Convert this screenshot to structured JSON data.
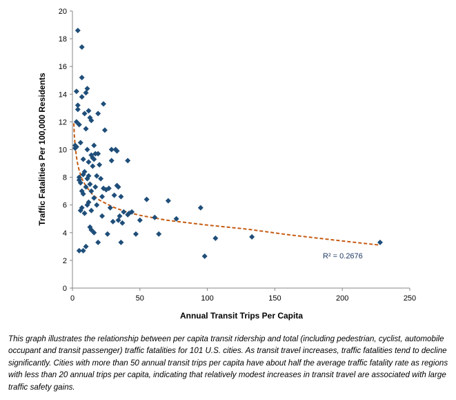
{
  "chart_data": {
    "type": "scatter",
    "xlabel": "Annual Transit Trips Per Capita",
    "ylabel": "Traffic Fatalities Per 100,000 Residents",
    "xlim": [
      0,
      250
    ],
    "ylim": [
      0,
      20
    ],
    "xticks": [
      0,
      50,
      100,
      150,
      200,
      250
    ],
    "yticks": [
      0,
      2,
      4,
      6,
      8,
      10,
      12,
      14,
      16,
      18,
      20
    ],
    "grid": false,
    "marker": "diamond",
    "point_color": "#1f4e79",
    "trendline": {
      "type": "power",
      "color": "#c55a11",
      "style": "dashed",
      "x": [
        1,
        1.5,
        2,
        3,
        4,
        5,
        7,
        10,
        15,
        20,
        30,
        40,
        50,
        70,
        100,
        130,
        160,
        200,
        228
      ],
      "y": [
        11.9,
        10.9,
        10.3,
        9.45,
        8.9,
        8.5,
        7.9,
        7.35,
        6.75,
        6.35,
        5.85,
        5.5,
        5.25,
        4.9,
        4.55,
        4.25,
        3.85,
        3.4,
        3.1
      ],
      "r2_label": "R² = 0.2676"
    },
    "points": [
      {
        "x": 2,
        "y": 10.1
      },
      {
        "x": 2,
        "y": 10.3
      },
      {
        "x": 3,
        "y": 12.0
      },
      {
        "x": 3,
        "y": 14.2
      },
      {
        "x": 3,
        "y": 10.2
      },
      {
        "x": 4,
        "y": 18.6
      },
      {
        "x": 4,
        "y": 13.2
      },
      {
        "x": 4,
        "y": 12.9
      },
      {
        "x": 5,
        "y": 11.8
      },
      {
        "x": 5,
        "y": 8.0
      },
      {
        "x": 5,
        "y": 7.8
      },
      {
        "x": 5,
        "y": 2.7
      },
      {
        "x": 6,
        "y": 10.5
      },
      {
        "x": 6,
        "y": 7.6
      },
      {
        "x": 6,
        "y": 5.6
      },
      {
        "x": 7,
        "y": 17.4
      },
      {
        "x": 7,
        "y": 15.2
      },
      {
        "x": 7,
        "y": 13.8
      },
      {
        "x": 7,
        "y": 7.0
      },
      {
        "x": 7,
        "y": 5.8
      },
      {
        "x": 8,
        "y": 9.3
      },
      {
        "x": 8,
        "y": 8.2
      },
      {
        "x": 8,
        "y": 6.8
      },
      {
        "x": 8,
        "y": 2.7
      },
      {
        "x": 9,
        "y": 12.6
      },
      {
        "x": 9,
        "y": 8.4
      },
      {
        "x": 9,
        "y": 5.4
      },
      {
        "x": 10,
        "y": 14.1
      },
      {
        "x": 10,
        "y": 11.5
      },
      {
        "x": 10,
        "y": 7.3
      },
      {
        "x": 10,
        "y": 3.0
      },
      {
        "x": 11,
        "y": 14.4
      },
      {
        "x": 11,
        "y": 10.0
      },
      {
        "x": 11,
        "y": 7.9
      },
      {
        "x": 11,
        "y": 6.0
      },
      {
        "x": 12,
        "y": 12.8
      },
      {
        "x": 12,
        "y": 9.1
      },
      {
        "x": 12,
        "y": 8.1
      },
      {
        "x": 12,
        "y": 6.2
      },
      {
        "x": 13,
        "y": 12.3
      },
      {
        "x": 13,
        "y": 7.5
      },
      {
        "x": 13,
        "y": 4.4
      },
      {
        "x": 14,
        "y": 12.1
      },
      {
        "x": 14,
        "y": 9.6
      },
      {
        "x": 14,
        "y": 7.0
      },
      {
        "x": 14,
        "y": 5.6
      },
      {
        "x": 14,
        "y": 4.2
      },
      {
        "x": 15,
        "y": 9.4
      },
      {
        "x": 15,
        "y": 8.8
      },
      {
        "x": 16,
        "y": 10.3
      },
      {
        "x": 16,
        "y": 9.3
      },
      {
        "x": 16,
        "y": 6.5
      },
      {
        "x": 16,
        "y": 4.0
      },
      {
        "x": 17,
        "y": 9.7
      },
      {
        "x": 17,
        "y": 7.3
      },
      {
        "x": 18,
        "y": 8.1
      },
      {
        "x": 18,
        "y": 6.0
      },
      {
        "x": 19,
        "y": 12.6
      },
      {
        "x": 19,
        "y": 9.7
      },
      {
        "x": 19,
        "y": 3.3
      },
      {
        "x": 20,
        "y": 8.9
      },
      {
        "x": 21,
        "y": 7.9
      },
      {
        "x": 22,
        "y": 6.6
      },
      {
        "x": 22,
        "y": 5.2
      },
      {
        "x": 23,
        "y": 13.3
      },
      {
        "x": 23,
        "y": 7.2
      },
      {
        "x": 24,
        "y": 11.4
      },
      {
        "x": 25,
        "y": 7.1
      },
      {
        "x": 26,
        "y": 3.9
      },
      {
        "x": 27,
        "y": 7.2
      },
      {
        "x": 28,
        "y": 5.8
      },
      {
        "x": 29,
        "y": 9.2
      },
      {
        "x": 29,
        "y": 10.0
      },
      {
        "x": 30,
        "y": 4.8
      },
      {
        "x": 31,
        "y": 6.7
      },
      {
        "x": 32,
        "y": 10.0
      },
      {
        "x": 33,
        "y": 9.9
      },
      {
        "x": 33,
        "y": 7.4
      },
      {
        "x": 34,
        "y": 7.3
      },
      {
        "x": 34,
        "y": 4.9
      },
      {
        "x": 35,
        "y": 5.2
      },
      {
        "x": 36,
        "y": 6.6
      },
      {
        "x": 36,
        "y": 3.3
      },
      {
        "x": 37,
        "y": 4.7
      },
      {
        "x": 38,
        "y": 5.5
      },
      {
        "x": 41,
        "y": 9.2
      },
      {
        "x": 41,
        "y": 5.3
      },
      {
        "x": 42,
        "y": 5.4
      },
      {
        "x": 44,
        "y": 5.5
      },
      {
        "x": 47,
        "y": 3.9
      },
      {
        "x": 50,
        "y": 4.9
      },
      {
        "x": 55,
        "y": 6.4
      },
      {
        "x": 61,
        "y": 5.1
      },
      {
        "x": 64,
        "y": 3.9
      },
      {
        "x": 71,
        "y": 6.3
      },
      {
        "x": 77,
        "y": 5.0
      },
      {
        "x": 95,
        "y": 5.8
      },
      {
        "x": 98,
        "y": 2.3
      },
      {
        "x": 106,
        "y": 3.6
      },
      {
        "x": 133,
        "y": 3.7
      },
      {
        "x": 228,
        "y": 3.3
      }
    ]
  },
  "caption": "This graph illustrates the relationship between per capita transit ridership and total (including pedestrian, cyclist, automobile occupant and transit passenger) traffic fatalities for 101 U.S. cities. As transit travel increases, traffic fatalities tend to decline significantly. Cities with more than 50 annual transit trips per capita have about half the average traffic fatality rate as regions with less than 20 annual trips per capita, indicating that relatively modest increases in  transit travel are associated with large traffic safety gains."
}
